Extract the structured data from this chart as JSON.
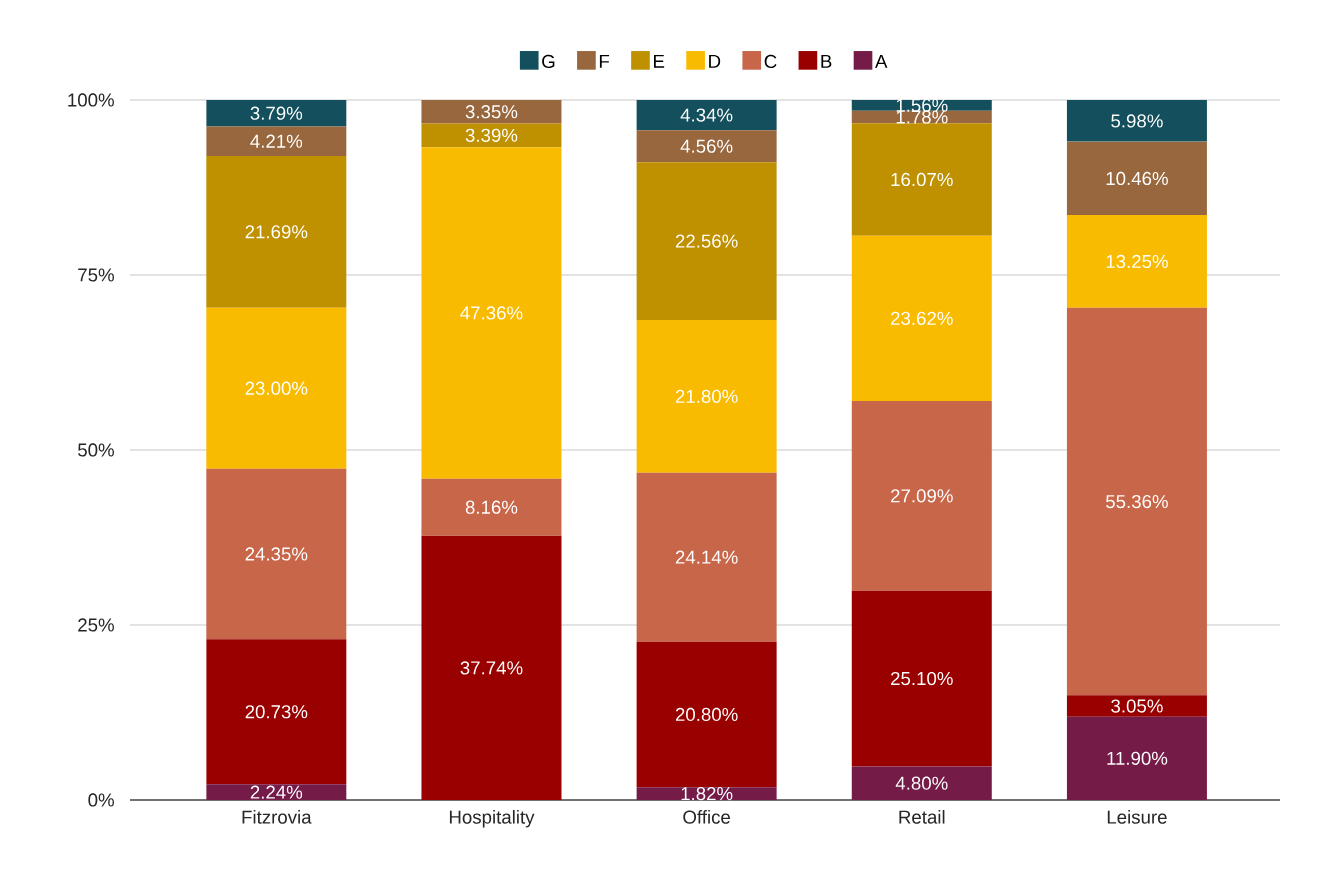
{
  "chart_data": {
    "type": "bar",
    "stacked": true,
    "categories": [
      "Fitzrovia",
      "Hospitality",
      "Office",
      "Retail",
      "Leisure"
    ],
    "ylim": [
      0,
      100
    ],
    "yticks": [
      {
        "value": 0,
        "label": "0%"
      },
      {
        "value": 25,
        "label": "25%"
      },
      {
        "value": 50,
        "label": "50%"
      },
      {
        "value": 75,
        "label": "75%"
      },
      {
        "value": 100,
        "label": "100%"
      }
    ],
    "grid": "y",
    "legend": "top",
    "series": [
      {
        "name": "A",
        "color": "#741b47",
        "values": [
          2.24,
          0,
          1.82,
          4.8,
          11.9
        ],
        "value_labels": [
          "2.24%",
          null,
          "1.82%",
          "4.80%",
          "11.90%"
        ]
      },
      {
        "name": "B",
        "color": "#990000",
        "values": [
          20.73,
          37.74,
          20.8,
          25.1,
          3.05
        ],
        "value_labels": [
          "20.73%",
          "37.74%",
          "20.80%",
          "25.10%",
          "3.05%"
        ]
      },
      {
        "name": "C",
        "color": "#c8664a",
        "values": [
          24.35,
          8.16,
          24.14,
          27.09,
          55.36
        ],
        "value_labels": [
          "24.35%",
          "8.16%",
          "24.14%",
          "27.09%",
          "55.36%"
        ]
      },
      {
        "name": "D",
        "color": "#f9bb00",
        "values": [
          23.0,
          47.36,
          21.8,
          23.62,
          13.25
        ],
        "value_labels": [
          "23.00%",
          "47.36%",
          "21.80%",
          "23.62%",
          "13.25%"
        ]
      },
      {
        "name": "E",
        "color": "#bf9000",
        "values": [
          21.69,
          3.39,
          22.56,
          16.07,
          0
        ],
        "value_labels": [
          "21.69%",
          "3.39%",
          "22.56%",
          "16.07%",
          null
        ]
      },
      {
        "name": "F",
        "color": "#98673e",
        "values": [
          4.21,
          3.35,
          4.56,
          1.78,
          10.46
        ],
        "value_labels": [
          "4.21%",
          "3.35%",
          "4.56%",
          "1.78%",
          "10.46%"
        ]
      },
      {
        "name": "G",
        "color": "#134f5c",
        "values": [
          3.79,
          0,
          4.34,
          1.56,
          5.98
        ],
        "value_labels": [
          "3.79%",
          null,
          "4.34%",
          "1.56%",
          "5.98%"
        ]
      }
    ]
  }
}
